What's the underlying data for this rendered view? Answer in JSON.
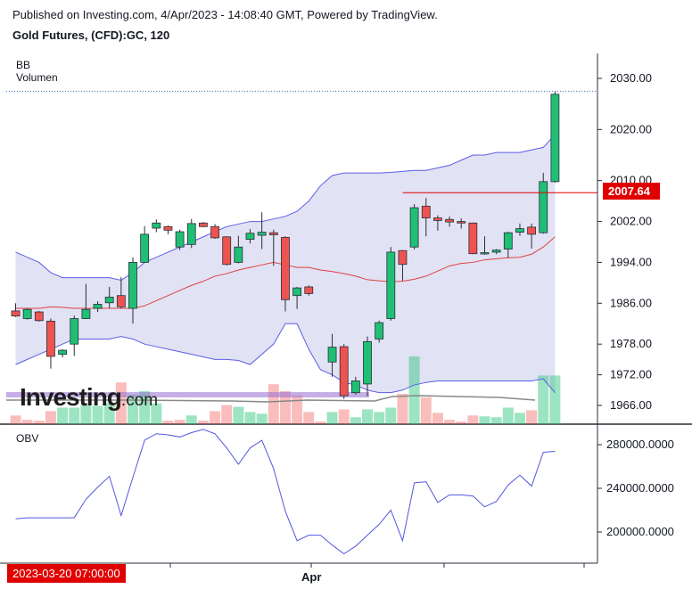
{
  "header": {
    "published": "Published on Investing.com, 4/Apr/2023 - 14:08:40 GMT, Powered by TradingView.",
    "symbol": "Gold Futures, (CFD):GC, 120"
  },
  "logo": {
    "name": "Investing",
    "suffix": ".com"
  },
  "colors": {
    "up": "#1fbf75",
    "down": "#ef5350",
    "bb": "#5b5ee6",
    "mid": "#e04040",
    "obv": "#5257e0",
    "price_label": "#e00000"
  },
  "chart_data": [
    {
      "type": "candlestick",
      "title": "",
      "indicators": [
        "BB",
        "Volumen"
      ],
      "ylim": [
        1962,
        2033
      ],
      "y_ticks": [
        "2030.00",
        "2020.00",
        "2010.00",
        "2002.00",
        "1994.00",
        "1986.00",
        "1978.00",
        "1972.00",
        "1966.00"
      ],
      "current_price": "2007.64",
      "x_labels": [
        "Apr"
      ],
      "cursor_date": "2023-03-20 07:00:00",
      "candles": [
        {
          "o": 1984.5,
          "h": 1986.0,
          "l": 1983.3,
          "c": 1983.5
        },
        {
          "o": 1983.0,
          "h": 1985.0,
          "l": 1982.8,
          "c": 1984.8
        },
        {
          "o": 1984.3,
          "h": 1984.5,
          "l": 1982.4,
          "c": 1982.6
        },
        {
          "o": 1982.5,
          "h": 1983.0,
          "l": 1973.2,
          "c": 1975.6
        },
        {
          "o": 1976.0,
          "h": 1977.0,
          "l": 1975.4,
          "c": 1976.8
        },
        {
          "o": 1978.0,
          "h": 1983.6,
          "l": 1975.7,
          "c": 1983.0
        },
        {
          "o": 1983.0,
          "h": 1989.8,
          "l": 1982.9,
          "c": 1984.8
        },
        {
          "o": 1985.0,
          "h": 1986.4,
          "l": 1984.3,
          "c": 1985.8
        },
        {
          "o": 1986.1,
          "h": 1989.2,
          "l": 1985.1,
          "c": 1987.2
        },
        {
          "o": 1987.5,
          "h": 1991.1,
          "l": 1985.0,
          "c": 1985.3
        },
        {
          "o": 1985.0,
          "h": 1995.0,
          "l": 1982.0,
          "c": 1994.0
        },
        {
          "o": 1994.0,
          "h": 2001.1,
          "l": 1993.9,
          "c": 1999.5
        },
        {
          "o": 2000.7,
          "h": 2002.4,
          "l": 1999.9,
          "c": 2001.7
        },
        {
          "o": 2001.0,
          "h": 2001.2,
          "l": 1999.5,
          "c": 2000.3
        },
        {
          "o": 1997.0,
          "h": 2000.4,
          "l": 1996.4,
          "c": 2000.0
        },
        {
          "o": 1997.5,
          "h": 2002.5,
          "l": 1996.8,
          "c": 2001.6
        },
        {
          "o": 2001.7,
          "h": 2001.9,
          "l": 2000.9,
          "c": 2001.0
        },
        {
          "o": 2001.0,
          "h": 2001.5,
          "l": 1998.6,
          "c": 1998.8
        },
        {
          "o": 1999.0,
          "h": 1999.1,
          "l": 1993.4,
          "c": 1993.6
        },
        {
          "o": 1994.0,
          "h": 1999.2,
          "l": 1993.8,
          "c": 1997.0
        },
        {
          "o": 1998.5,
          "h": 2000.5,
          "l": 1997.7,
          "c": 1999.7
        },
        {
          "o": 1999.3,
          "h": 2003.8,
          "l": 1996.6,
          "c": 1999.9
        },
        {
          "o": 1999.8,
          "h": 2000.4,
          "l": 1993.3,
          "c": 1999.4
        },
        {
          "o": 1998.9,
          "h": 1999.1,
          "l": 1984.4,
          "c": 1986.7
        },
        {
          "o": 1987.5,
          "h": 1989.2,
          "l": 1984.9,
          "c": 1989.0
        },
        {
          "o": 1989.2,
          "h": 1989.5,
          "l": 1987.5,
          "c": 1987.9
        },
        {
          "o": null,
          "h": null,
          "l": null,
          "c": null
        },
        {
          "o": 1974.5,
          "h": 1980.0,
          "l": 1971.6,
          "c": 1977.4
        },
        {
          "o": 1977.5,
          "h": 1978.0,
          "l": 1967.3,
          "c": 1967.9
        },
        {
          "o": 1968.5,
          "h": 1971.6,
          "l": 1968.1,
          "c": 1970.8
        },
        {
          "o": 1970.2,
          "h": 1979.5,
          "l": 1967.8,
          "c": 1978.5
        },
        {
          "o": 1979.0,
          "h": 1982.6,
          "l": 1978.3,
          "c": 1982.2
        },
        {
          "o": 1983.0,
          "h": 1997.0,
          "l": 1982.6,
          "c": 1996.0
        },
        {
          "o": 1996.3,
          "h": 1996.4,
          "l": 1990.4,
          "c": 1993.6
        },
        {
          "o": 1997.0,
          "h": 2005.4,
          "l": 1996.5,
          "c": 2004.7
        },
        {
          "o": 2005.0,
          "h": 2006.6,
          "l": 1999.1,
          "c": 2002.7
        },
        {
          "o": 2002.7,
          "h": 2003.2,
          "l": 2000.2,
          "c": 2002.2
        },
        {
          "o": 2002.4,
          "h": 2003.0,
          "l": 2001.0,
          "c": 2001.9
        },
        {
          "o": 2002.0,
          "h": 2002.6,
          "l": 2000.6,
          "c": 2001.7
        },
        {
          "o": 2001.7,
          "h": 2001.8,
          "l": 1995.6,
          "c": 1995.7
        },
        {
          "o": 1995.7,
          "h": 1999.1,
          "l": 1995.5,
          "c": 1995.9
        },
        {
          "o": 1996.0,
          "h": 1996.6,
          "l": 1995.6,
          "c": 1996.4
        },
        {
          "o": 1996.6,
          "h": 2000.0,
          "l": 1994.9,
          "c": 1999.8
        },
        {
          "o": 1999.9,
          "h": 2001.6,
          "l": 1999.2,
          "c": 2000.6
        },
        {
          "o": 2000.9,
          "h": 2001.6,
          "l": 1996.7,
          "c": 1999.5
        },
        {
          "o": 1999.8,
          "h": 2011.5,
          "l": 1999.6,
          "c": 2009.8
        },
        {
          "o": 2009.8,
          "h": 2027.5,
          "l": 2009.6,
          "c": 2026.9
        }
      ],
      "volume": [
        {
          "v": 10,
          "up": false
        },
        {
          "v": 5,
          "up": false
        },
        {
          "v": 4,
          "up": false
        },
        {
          "v": 15,
          "up": false
        },
        {
          "v": 19,
          "up": true
        },
        {
          "v": 19,
          "up": true
        },
        {
          "v": 22,
          "up": true
        },
        {
          "v": 21,
          "up": true
        },
        {
          "v": 24,
          "up": true
        },
        {
          "v": 48,
          "up": false
        },
        {
          "v": 34,
          "up": true
        },
        {
          "v": 38,
          "up": true
        },
        {
          "v": 24,
          "up": true
        },
        {
          "v": 4,
          "up": false
        },
        {
          "v": 5,
          "up": false
        },
        {
          "v": 10,
          "up": true
        },
        {
          "v": 4,
          "up": false
        },
        {
          "v": 15,
          "up": false
        },
        {
          "v": 22,
          "up": false
        },
        {
          "v": 20,
          "up": true
        },
        {
          "v": 14,
          "up": true
        },
        {
          "v": 12,
          "up": true
        },
        {
          "v": 46,
          "up": false
        },
        {
          "v": 38,
          "up": false
        },
        {
          "v": 33,
          "up": false
        },
        {
          "v": 14,
          "up": false
        },
        {
          "v": 3,
          "up": false
        },
        {
          "v": 14,
          "up": true
        },
        {
          "v": 17,
          "up": false
        },
        {
          "v": 8,
          "up": true
        },
        {
          "v": 17,
          "up": true
        },
        {
          "v": 14,
          "up": true
        },
        {
          "v": 19,
          "up": true
        },
        {
          "v": 35,
          "up": false
        },
        {
          "v": 78,
          "up": true
        },
        {
          "v": 31,
          "up": false
        },
        {
          "v": 13,
          "up": false
        },
        {
          "v": 5,
          "up": false
        },
        {
          "v": 3,
          "up": false
        },
        {
          "v": 10,
          "up": false
        },
        {
          "v": 9,
          "up": true
        },
        {
          "v": 8,
          "up": true
        },
        {
          "v": 19,
          "up": true
        },
        {
          "v": 13,
          "up": true
        },
        {
          "v": 16,
          "up": false
        },
        {
          "v": 56,
          "up": true
        },
        {
          "v": 56,
          "up": true
        }
      ],
      "volume_max": 80,
      "bb_upper": [
        1996,
        1995,
        1994,
        1992,
        1991,
        1991,
        1991,
        1991,
        1991,
        1990.5,
        1992,
        1994,
        1995,
        1996,
        1997,
        1998,
        1999,
        2000,
        2001,
        2001.5,
        2002,
        2002,
        2002.5,
        2003,
        2004,
        2006,
        2009,
        2011,
        2011.5,
        2011.5,
        2011.5,
        2011.5,
        2011.6,
        2011.8,
        2012,
        2012,
        2012.5,
        2013,
        2014,
        2015,
        2015,
        2015.5,
        2015.5,
        2015.5,
        2016,
        2016.5,
        2019
      ],
      "bb_middle": [
        1985,
        1985,
        1985,
        1985.3,
        1985.2,
        1985,
        1985,
        1985,
        1985,
        1985,
        1985,
        1985.5,
        1986.5,
        1987.5,
        1988.5,
        1989.5,
        1990.3,
        1991.3,
        1991.8,
        1992.5,
        1993,
        1993.5,
        1994,
        1993.5,
        1993,
        1993,
        1992.5,
        1992.2,
        1991.8,
        1991.3,
        1990.6,
        1990.4,
        1990.2,
        1990.3,
        1990.7,
        1991.3,
        1992.3,
        1993.3,
        1993.8,
        1994,
        1994.5,
        1994.7,
        1994.9,
        1995,
        1995.6,
        1997,
        1999
      ],
      "bb_lower": [
        1974,
        1975,
        1976,
        1977,
        1978,
        1979,
        1979,
        1979,
        1979,
        1979.5,
        1979,
        1978,
        1977.5,
        1977,
        1976.5,
        1976,
        1975.5,
        1975,
        1975,
        1974.8,
        1974,
        1976,
        1978,
        1982,
        1982,
        1977,
        1973,
        1972,
        1970.5,
        1970,
        1969,
        1968.5,
        1968.5,
        1969,
        1970,
        1970.5,
        1970.8,
        1970.8,
        1970.8,
        1970.8,
        1970.8,
        1970.8,
        1970.8,
        1970.8,
        1970.8,
        1971.2,
        1968.5
      ]
    },
    {
      "type": "line",
      "title": "OBV",
      "ylim": [
        172000,
        292000
      ],
      "y_ticks": [
        "280000.0000",
        "240000.0000",
        "200000.0000"
      ],
      "values": [
        212000,
        213000,
        213000,
        213000,
        213000,
        213000,
        230000,
        241000,
        251000,
        215000,
        250000,
        284000,
        290000,
        289000,
        287000,
        291000,
        294000,
        290000,
        277000,
        262000,
        277000,
        284000,
        258000,
        219000,
        192000,
        197000,
        197000,
        188000,
        180000,
        187000,
        197000,
        207000,
        220000,
        192000,
        245000,
        246000,
        227000,
        234000,
        234000,
        233000,
        223000,
        228000,
        243000,
        252000,
        242000,
        273000,
        274000
      ]
    }
  ]
}
